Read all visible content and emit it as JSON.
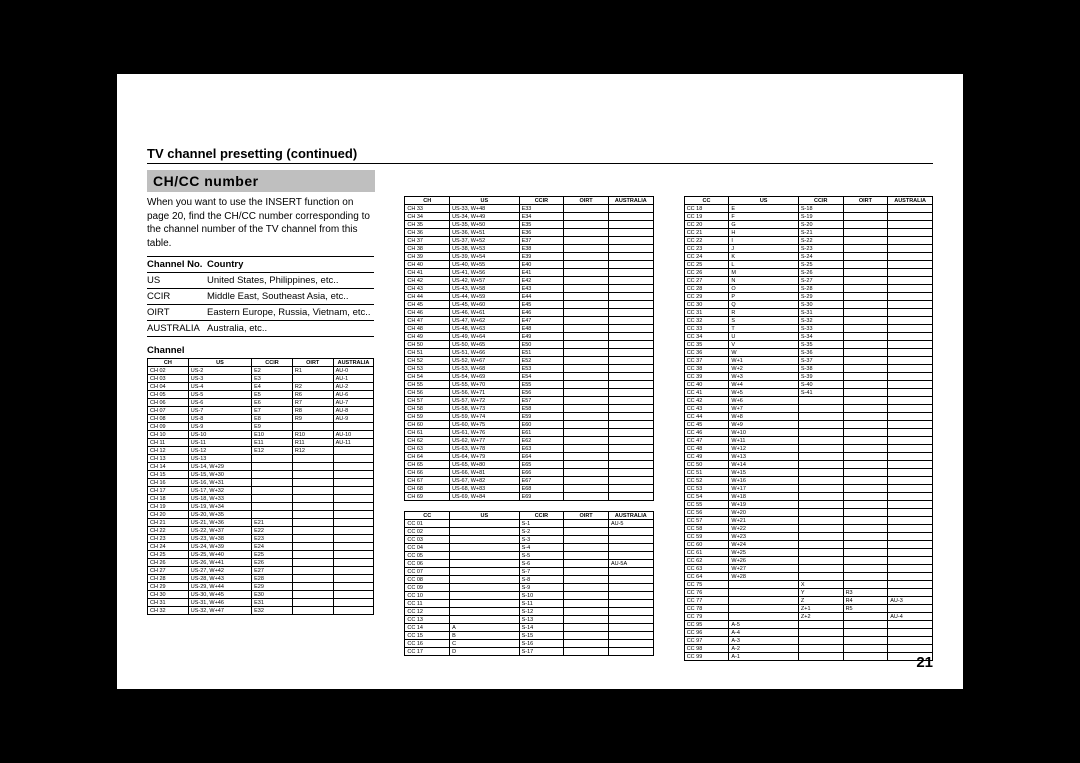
{
  "page_title": "TV channel presetting (continued)",
  "section_title": "CH/CC number",
  "intro": "When you want to use the INSERT function on page 20, find the CH/CC number corresponding to the channel number of the TV channel from this table.",
  "country_headers": [
    "Channel No.",
    "Country"
  ],
  "country_rows": [
    [
      "US",
      "United States, Philippines, etc.."
    ],
    [
      "CCIR",
      "Middle East, Southeast Asia, etc.."
    ],
    [
      "OIRT",
      "Eastern Europe, Russia, Vietnam, etc.."
    ],
    [
      "AUSTRALIA",
      "Australia, etc.."
    ]
  ],
  "channel_label": "Channel",
  "table_headers_ch": [
    "CH",
    "US",
    "CCIR",
    "OIRT",
    "AUSTRALIA"
  ],
  "table_headers_cc": [
    "CC",
    "US",
    "CCIR",
    "OIRT",
    "AUSTRALIA"
  ],
  "col1_table": [
    [
      "CH 02",
      "US-2",
      "E2",
      "R1",
      "AU-0"
    ],
    [
      "CH 03",
      "US-3",
      "E3",
      "",
      "AU-1"
    ],
    [
      "CH 04",
      "US-4",
      "E4",
      "R2",
      "AU-2"
    ],
    [
      "CH 05",
      "US-5",
      "E5",
      "R6",
      "AU-6"
    ],
    [
      "CH 06",
      "US-6",
      "E6",
      "R7",
      "AU-7"
    ],
    [
      "CH 07",
      "US-7",
      "E7",
      "R8",
      "AU-8"
    ],
    [
      "CH 08",
      "US-8",
      "E8",
      "R9",
      "AU-9"
    ],
    [
      "CH 09",
      "US-9",
      "E9",
      "",
      ""
    ],
    [
      "CH 10",
      "US-10",
      "E10",
      "R10",
      "AU-10"
    ],
    [
      "CH 11",
      "US-11",
      "E11",
      "R11",
      "AU-11"
    ],
    [
      "CH 12",
      "US-12",
      "E12",
      "R12",
      ""
    ],
    [
      "CH 13",
      "US-13",
      "",
      "",
      ""
    ],
    [
      "CH 14",
      "US-14, W+29",
      "",
      "",
      ""
    ],
    [
      "CH 15",
      "US-15, W+30",
      "",
      "",
      ""
    ],
    [
      "CH 16",
      "US-16, W+31",
      "",
      "",
      ""
    ],
    [
      "CH 17",
      "US-17, W+32",
      "",
      "",
      ""
    ],
    [
      "CH 18",
      "US-18, W+33",
      "",
      "",
      ""
    ],
    [
      "CH 19",
      "US-19, W+34",
      "",
      "",
      ""
    ],
    [
      "CH 20",
      "US-20, W+35",
      "",
      "",
      ""
    ],
    [
      "CH 21",
      "US-21, W+36",
      "E21",
      "",
      ""
    ],
    [
      "CH 22",
      "US-22, W+37",
      "E22",
      "",
      ""
    ],
    [
      "CH 23",
      "US-23, W+38",
      "E23",
      "",
      ""
    ],
    [
      "CH 24",
      "US-24, W+39",
      "E24",
      "",
      ""
    ],
    [
      "CH 25",
      "US-25, W+40",
      "E25",
      "",
      ""
    ],
    [
      "CH 26",
      "US-26, W+41",
      "E26",
      "",
      ""
    ],
    [
      "CH 27",
      "US-27, W+42",
      "E27",
      "",
      ""
    ],
    [
      "CH 28",
      "US-28, W+43",
      "E28",
      "",
      ""
    ],
    [
      "CH 29",
      "US-29, W+44",
      "E29",
      "",
      ""
    ],
    [
      "CH 30",
      "US-30, W+45",
      "E30",
      "",
      ""
    ],
    [
      "CH 31",
      "US-31, W+46",
      "E31",
      "",
      ""
    ],
    [
      "CH 32",
      "US-32, W+47",
      "E32",
      "",
      ""
    ]
  ],
  "col2_table_a": [
    [
      "CH 33",
      "US-33, W+48",
      "E33",
      "",
      ""
    ],
    [
      "CH 34",
      "US-34, W+49",
      "E34",
      "",
      ""
    ],
    [
      "CH 35",
      "US-35, W+50",
      "E35",
      "",
      ""
    ],
    [
      "CH 36",
      "US-36, W+51",
      "E36",
      "",
      ""
    ],
    [
      "CH 37",
      "US-37, W+52",
      "E37",
      "",
      ""
    ],
    [
      "CH 38",
      "US-38, W+53",
      "E38",
      "",
      ""
    ],
    [
      "CH 39",
      "US-39, W+54",
      "E39",
      "",
      ""
    ],
    [
      "CH 40",
      "US-40, W+55",
      "E40",
      "",
      ""
    ],
    [
      "CH 41",
      "US-41, W+56",
      "E41",
      "",
      ""
    ],
    [
      "CH 42",
      "US-42, W+57",
      "E42",
      "",
      ""
    ],
    [
      "CH 43",
      "US-43, W+58",
      "E43",
      "",
      ""
    ],
    [
      "CH 44",
      "US-44, W+59",
      "E44",
      "",
      ""
    ],
    [
      "CH 45",
      "US-45, W+60",
      "E45",
      "",
      ""
    ],
    [
      "CH 46",
      "US-46, W+61",
      "E46",
      "",
      ""
    ],
    [
      "CH 47",
      "US-47, W+62",
      "E47",
      "",
      ""
    ],
    [
      "CH 48",
      "US-48, W+63",
      "E48",
      "",
      ""
    ],
    [
      "CH 49",
      "US-49, W+64",
      "E49",
      "",
      ""
    ],
    [
      "CH 50",
      "US-50, W+65",
      "E50",
      "",
      ""
    ],
    [
      "CH 51",
      "US-51, W+66",
      "E51",
      "",
      ""
    ],
    [
      "CH 52",
      "US-52, W+67",
      "E52",
      "",
      ""
    ],
    [
      "CH 53",
      "US-53, W+68",
      "E53",
      "",
      ""
    ],
    [
      "CH 54",
      "US-54, W+69",
      "E54",
      "",
      ""
    ],
    [
      "CH 55",
      "US-55, W+70",
      "E55",
      "",
      ""
    ],
    [
      "CH 56",
      "US-56, W+71",
      "E56",
      "",
      ""
    ],
    [
      "CH 57",
      "US-57, W+72",
      "E57",
      "",
      ""
    ],
    [
      "CH 58",
      "US-58, W+73",
      "E58",
      "",
      ""
    ],
    [
      "CH 59",
      "US-59, W+74",
      "E59",
      "",
      ""
    ],
    [
      "CH 60",
      "US-60, W+75",
      "E60",
      "",
      ""
    ],
    [
      "CH 61",
      "US-61, W+76",
      "E61",
      "",
      ""
    ],
    [
      "CH 62",
      "US-62, W+77",
      "E62",
      "",
      ""
    ],
    [
      "CH 63",
      "US-63, W+78",
      "E63",
      "",
      ""
    ],
    [
      "CH 64",
      "US-64, W+79",
      "E64",
      "",
      ""
    ],
    [
      "CH 65",
      "US-65, W+80",
      "E65",
      "",
      ""
    ],
    [
      "CH 66",
      "US-66, W+81",
      "E66",
      "",
      ""
    ],
    [
      "CH 67",
      "US-67, W+82",
      "E67",
      "",
      ""
    ],
    [
      "CH 68",
      "US-68, W+83",
      "E68",
      "",
      ""
    ],
    [
      "CH 69",
      "US-69, W+84",
      "E69",
      "",
      ""
    ]
  ],
  "col2_table_b": [
    [
      "CC 01",
      "",
      "S-1",
      "",
      "AU-5"
    ],
    [
      "CC 02",
      "",
      "S-2",
      "",
      ""
    ],
    [
      "CC 03",
      "",
      "S-3",
      "",
      ""
    ],
    [
      "CC 04",
      "",
      "S-4",
      "",
      ""
    ],
    [
      "CC 05",
      "",
      "S-5",
      "",
      ""
    ],
    [
      "CC 06",
      "",
      "S-6",
      "",
      "AU-5A"
    ],
    [
      "CC 07",
      "",
      "S-7",
      "",
      ""
    ],
    [
      "CC 08",
      "",
      "S-8",
      "",
      ""
    ],
    [
      "CC 09",
      "",
      "S-9",
      "",
      ""
    ],
    [
      "CC 10",
      "",
      "S-10",
      "",
      ""
    ],
    [
      "CC 11",
      "",
      "S-11",
      "",
      ""
    ],
    [
      "CC 12",
      "",
      "S-12",
      "",
      ""
    ],
    [
      "CC 13",
      "",
      "S-13",
      "",
      ""
    ],
    [
      "CC 14",
      "A",
      "S-14",
      "",
      ""
    ],
    [
      "CC 15",
      "B",
      "S-15",
      "",
      ""
    ],
    [
      "CC 16",
      "C",
      "S-16",
      "",
      ""
    ],
    [
      "CC 17",
      "D",
      "S-17",
      "",
      ""
    ]
  ],
  "col3_table": [
    [
      "CC 18",
      "E",
      "S-18",
      "",
      ""
    ],
    [
      "CC 19",
      "F",
      "S-19",
      "",
      ""
    ],
    [
      "CC 20",
      "G",
      "S-20",
      "",
      ""
    ],
    [
      "CC 21",
      "H",
      "S-21",
      "",
      ""
    ],
    [
      "CC 22",
      "I",
      "S-22",
      "",
      ""
    ],
    [
      "CC 23",
      "J",
      "S-23",
      "",
      ""
    ],
    [
      "CC 24",
      "K",
      "S-24",
      "",
      ""
    ],
    [
      "CC 25",
      "L",
      "S-25",
      "",
      ""
    ],
    [
      "CC 26",
      "M",
      "S-26",
      "",
      ""
    ],
    [
      "CC 27",
      "N",
      "S-27",
      "",
      ""
    ],
    [
      "CC 28",
      "O",
      "S-28",
      "",
      ""
    ],
    [
      "CC 29",
      "P",
      "S-29",
      "",
      ""
    ],
    [
      "CC 30",
      "Q",
      "S-30",
      "",
      ""
    ],
    [
      "CC 31",
      "R",
      "S-31",
      "",
      ""
    ],
    [
      "CC 32",
      "S",
      "S-32",
      "",
      ""
    ],
    [
      "CC 33",
      "T",
      "S-33",
      "",
      ""
    ],
    [
      "CC 34",
      "U",
      "S-34",
      "",
      ""
    ],
    [
      "CC 35",
      "V",
      "S-35",
      "",
      ""
    ],
    [
      "CC 36",
      "W",
      "S-36",
      "",
      ""
    ],
    [
      "CC 37",
      "W+1",
      "S-37",
      "",
      ""
    ],
    [
      "CC 38",
      "W+2",
      "S-38",
      "",
      ""
    ],
    [
      "CC 39",
      "W+3",
      "S-39",
      "",
      ""
    ],
    [
      "CC 40",
      "W+4",
      "S-40",
      "",
      ""
    ],
    [
      "CC 41",
      "W+5",
      "S-41",
      "",
      ""
    ],
    [
      "CC 42",
      "W+6",
      "",
      "",
      ""
    ],
    [
      "CC 43",
      "W+7",
      "",
      "",
      ""
    ],
    [
      "CC 44",
      "W+8",
      "",
      "",
      ""
    ],
    [
      "CC 45",
      "W+9",
      "",
      "",
      ""
    ],
    [
      "CC 46",
      "W+10",
      "",
      "",
      ""
    ],
    [
      "CC 47",
      "W+11",
      "",
      "",
      ""
    ],
    [
      "CC 48",
      "W+12",
      "",
      "",
      ""
    ],
    [
      "CC 49",
      "W+13",
      "",
      "",
      ""
    ],
    [
      "CC 50",
      "W+14",
      "",
      "",
      ""
    ],
    [
      "CC 51",
      "W+15",
      "",
      "",
      ""
    ],
    [
      "CC 52",
      "W+16",
      "",
      "",
      ""
    ],
    [
      "CC 53",
      "W+17",
      "",
      "",
      ""
    ],
    [
      "CC 54",
      "W+18",
      "",
      "",
      ""
    ],
    [
      "CC 55",
      "W+19",
      "",
      "",
      ""
    ],
    [
      "CC 56",
      "W+20",
      "",
      "",
      ""
    ],
    [
      "CC 57",
      "W+21",
      "",
      "",
      ""
    ],
    [
      "CC 58",
      "W+22",
      "",
      "",
      ""
    ],
    [
      "CC 59",
      "W+23",
      "",
      "",
      ""
    ],
    [
      "CC 60",
      "W+24",
      "",
      "",
      ""
    ],
    [
      "CC 61",
      "W+25",
      "",
      "",
      ""
    ],
    [
      "CC 62",
      "W+26",
      "",
      "",
      ""
    ],
    [
      "CC 63",
      "W+27",
      "",
      "",
      ""
    ],
    [
      "CC 64",
      "W+28",
      "",
      "",
      ""
    ],
    [
      "CC 75",
      "",
      "X",
      "",
      ""
    ],
    [
      "CC 76",
      "",
      "Y",
      "R3",
      ""
    ],
    [
      "CC 77",
      "",
      "Z",
      "R4",
      "AU-3"
    ],
    [
      "CC 78",
      "",
      "Z+1",
      "R5",
      ""
    ],
    [
      "CC 79",
      "",
      "Z+2",
      "",
      "AU-4"
    ],
    [
      "CC 95",
      "A-5",
      "",
      "",
      ""
    ],
    [
      "CC 96",
      "A-4",
      "",
      "",
      ""
    ],
    [
      "CC 97",
      "A-3",
      "",
      "",
      ""
    ],
    [
      "CC 98",
      "A-2",
      "",
      "",
      ""
    ],
    [
      "CC 99",
      "A-1",
      "",
      "",
      ""
    ]
  ],
  "page_number": "21",
  "colors": {
    "page_bg": "#ffffff",
    "outer_bg": "#000000",
    "section_bg": "#bfbfbf",
    "text": "#000000"
  }
}
